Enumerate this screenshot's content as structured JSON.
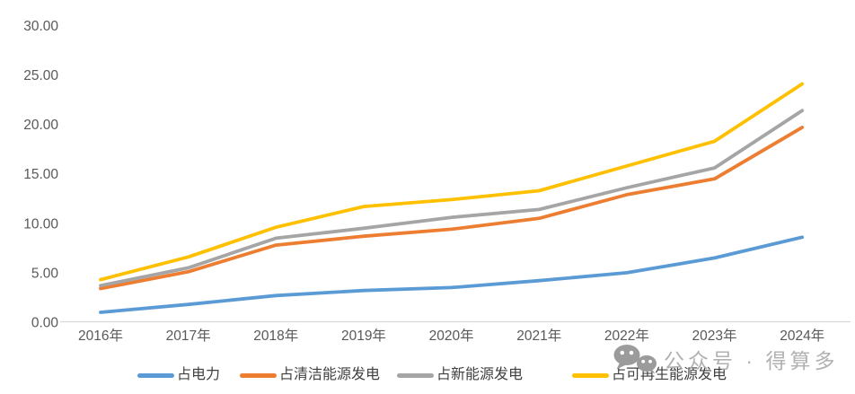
{
  "chart_data": {
    "type": "line",
    "title": "",
    "xlabel": "",
    "ylabel": "",
    "categories": [
      "2016年",
      "2017年",
      "2018年",
      "2019年",
      "2020年",
      "2021年",
      "2022年",
      "2023年",
      "2024年"
    ],
    "series": [
      {
        "name": "占电力",
        "color": "#5B9BD5",
        "values": [
          1.0,
          1.8,
          2.7,
          3.2,
          3.5,
          4.2,
          5.0,
          6.5,
          8.6
        ]
      },
      {
        "name": "占清洁能源发电",
        "color": "#ED7D31",
        "values": [
          3.4,
          5.1,
          7.8,
          8.7,
          9.4,
          10.5,
          12.9,
          14.5,
          19.7
        ]
      },
      {
        "name": "占新能源发电",
        "color": "#A5A5A5",
        "values": [
          3.7,
          5.5,
          8.5,
          9.5,
          10.6,
          11.4,
          13.6,
          15.6,
          21.4
        ]
      },
      {
        "name": "占可再生能源发电",
        "color": "#FFC000",
        "values": [
          4.3,
          6.6,
          9.6,
          11.7,
          12.4,
          13.3,
          15.8,
          18.3,
          24.1
        ]
      }
    ],
    "ylim": [
      0,
      30
    ],
    "y_ticks": [
      {
        "value": 0,
        "label": "0.00"
      },
      {
        "value": 5,
        "label": "5.00"
      },
      {
        "value": 10,
        "label": "10.00"
      },
      {
        "value": 15,
        "label": "15.00"
      },
      {
        "value": 20,
        "label": "20.00"
      },
      {
        "value": 25,
        "label": "25.00"
      },
      {
        "value": 30,
        "label": "30.00"
      }
    ],
    "grid": false,
    "legend_position": "bottom"
  },
  "watermark": {
    "icon": "wechat-icon",
    "text": "公众号 · 得算多"
  },
  "colors": {
    "axis_line": "#D9D9D9",
    "tick_label": "#595959",
    "legend_label": "#404040",
    "watermark": "#ABABAB",
    "wechat_icon": "#9b9b9b"
  }
}
